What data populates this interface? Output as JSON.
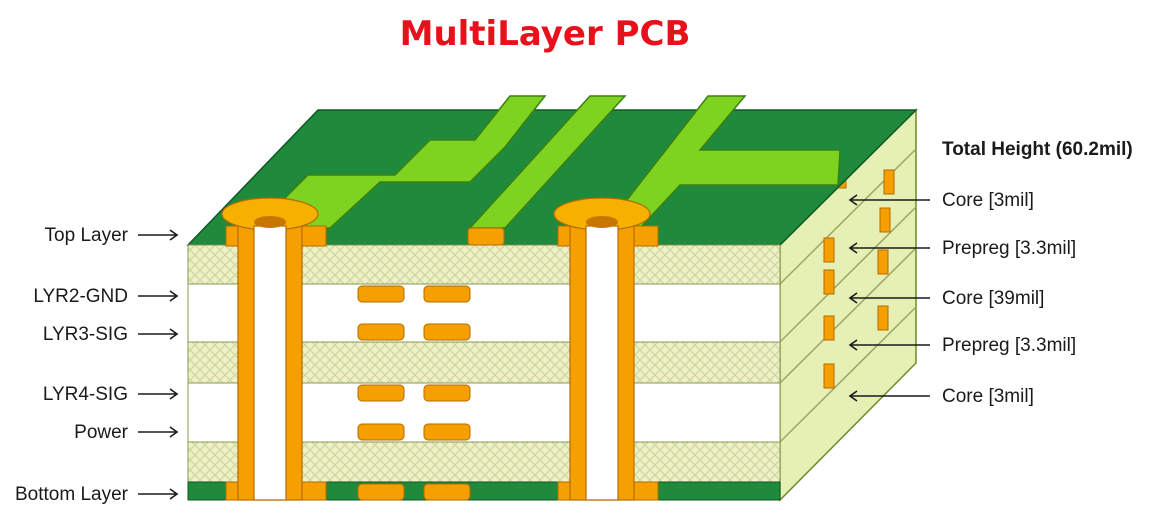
{
  "title": "MultiLayer PCB",
  "colors": {
    "title": "#e8101a",
    "board_top": "#1f8a3c",
    "trace": "#7ed321",
    "copper": "#f5a000",
    "prepreg": "#f0f0c8",
    "side": "#e6efb4"
  },
  "left_labels": [
    {
      "id": "top-layer",
      "text": "Top Layer"
    },
    {
      "id": "lyr2-gnd",
      "text": "LYR2-GND"
    },
    {
      "id": "lyr3-sig",
      "text": "LYR3-SIG"
    },
    {
      "id": "lyr4-sig",
      "text": "LYR4-SIG"
    },
    {
      "id": "power",
      "text": "Power"
    },
    {
      "id": "bottom-layer",
      "text": "Bottom Layer"
    }
  ],
  "right_title": "Total Height (60.2mil)",
  "right_labels": [
    {
      "id": "core-3mil-top",
      "text": "Core [3mil]"
    },
    {
      "id": "prepreg-upper",
      "text": "Prepreg [3.3mil]"
    },
    {
      "id": "core-39mil",
      "text": "Core [39mil]"
    },
    {
      "id": "prepreg-lower",
      "text": "Prepreg [3.3mil]"
    },
    {
      "id": "core-3mil-bottom",
      "text": "Core [3mil]"
    }
  ]
}
